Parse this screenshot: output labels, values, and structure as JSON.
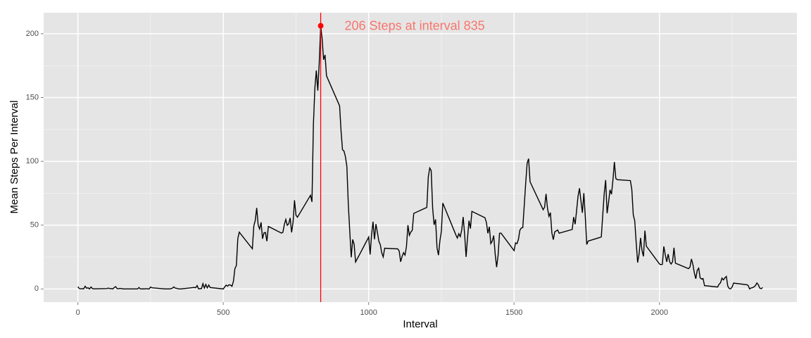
{
  "chart_data": {
    "type": "line",
    "x_label": "Interval",
    "y_label": "Mean Steps Per Interval",
    "xlim": [
      -117.75,
      2472.75
    ],
    "ylim": [
      -10.3,
      216.5
    ],
    "xticks": [
      0,
      500,
      1000,
      1500,
      2000
    ],
    "yticks": [
      0,
      50,
      100,
      150,
      200
    ],
    "x_minor_ticks": [
      250,
      750,
      1250,
      1750,
      2250
    ],
    "y_minor_ticks": [
      25,
      75,
      125,
      175
    ],
    "grid": true,
    "color": "#000000",
    "x": [
      0,
      5,
      10,
      15,
      20,
      25,
      30,
      35,
      40,
      45,
      50,
      55,
      100,
      105,
      110,
      115,
      120,
      125,
      130,
      135,
      140,
      145,
      150,
      155,
      200,
      205,
      210,
      215,
      220,
      225,
      230,
      235,
      240,
      245,
      250,
      255,
      300,
      305,
      310,
      315,
      320,
      325,
      330,
      335,
      340,
      345,
      350,
      355,
      400,
      405,
      410,
      415,
      420,
      425,
      430,
      435,
      440,
      445,
      450,
      455,
      500,
      505,
      510,
      515,
      520,
      525,
      530,
      535,
      540,
      545,
      550,
      555,
      600,
      605,
      610,
      615,
      620,
      625,
      630,
      635,
      640,
      645,
      650,
      655,
      700,
      705,
      710,
      715,
      720,
      725,
      730,
      735,
      740,
      745,
      750,
      755,
      800,
      805,
      810,
      815,
      820,
      825,
      830,
      835,
      840,
      845,
      850,
      855,
      900,
      905,
      910,
      915,
      920,
      925,
      930,
      935,
      940,
      945,
      950,
      955,
      1000,
      1005,
      1010,
      1015,
      1020,
      1025,
      1030,
      1035,
      1040,
      1045,
      1050,
      1055,
      1100,
      1105,
      1110,
      1115,
      1120,
      1125,
      1130,
      1135,
      1140,
      1145,
      1150,
      1155,
      1200,
      1205,
      1210,
      1215,
      1220,
      1225,
      1230,
      1235,
      1240,
      1245,
      1250,
      1255,
      1300,
      1305,
      1310,
      1315,
      1320,
      1325,
      1330,
      1335,
      1340,
      1345,
      1350,
      1355,
      1400,
      1405,
      1410,
      1415,
      1420,
      1425,
      1430,
      1435,
      1440,
      1445,
      1450,
      1455,
      1500,
      1505,
      1510,
      1515,
      1520,
      1525,
      1530,
      1535,
      1540,
      1545,
      1550,
      1555,
      1600,
      1605,
      1610,
      1615,
      1620,
      1625,
      1630,
      1635,
      1640,
      1645,
      1650,
      1655,
      1700,
      1705,
      1710,
      1715,
      1720,
      1725,
      1730,
      1735,
      1740,
      1745,
      1750,
      1755,
      1800,
      1805,
      1810,
      1815,
      1820,
      1825,
      1830,
      1835,
      1840,
      1845,
      1850,
      1855,
      1900,
      1905,
      1910,
      1915,
      1920,
      1925,
      1930,
      1935,
      1940,
      1945,
      1950,
      1955,
      2000,
      2005,
      2010,
      2015,
      2020,
      2025,
      2030,
      2035,
      2040,
      2045,
      2050,
      2055,
      2100,
      2105,
      2110,
      2115,
      2120,
      2125,
      2130,
      2135,
      2140,
      2145,
      2150,
      2155,
      2200,
      2205,
      2210,
      2215,
      2220,
      2225,
      2230,
      2235,
      2240,
      2245,
      2250,
      2255,
      2300,
      2305,
      2310,
      2315,
      2320,
      2325,
      2330,
      2335,
      2340,
      2345,
      2350,
      2355
    ],
    "values": [
      1.7,
      0.3,
      0.1,
      0.2,
      0.1,
      2.1,
      0.5,
      0.9,
      0,
      1.5,
      0.3,
      0.1,
      0.3,
      0.7,
      0.2,
      0.3,
      0,
      1.1,
      1.8,
      0.2,
      0.2,
      0.4,
      0.3,
      0,
      0,
      0,
      1.1,
      0,
      0,
      0.1,
      0,
      0.2,
      0,
      0,
      1.5,
      0.9,
      0,
      0,
      0,
      0,
      0.2,
      0.6,
      1.6,
      0.6,
      0.5,
      0.1,
      0,
      0,
      1.2,
      0.9,
      2.6,
      0,
      0.3,
      0.2,
      4.1,
      0.7,
      3.5,
      0.8,
      3.1,
      1.1,
      0,
      1.6,
      3,
      2.2,
      3.3,
      3,
      2.1,
      6.1,
      16,
      18.3,
      39.5,
      44.5,
      31.5,
      49.3,
      53.8,
      63.5,
      50,
      47,
      52.2,
      39.3,
      44,
      44.2,
      37.4,
      49,
      43.8,
      44.4,
      50.5,
      54.5,
      49.9,
      51,
      55.7,
      44.3,
      52.3,
      69.5,
      57.8,
      56.2,
      73.4,
      68.2,
      129.4,
      157.5,
      171.2,
      155.4,
      177.3,
      206.2,
      195.9,
      179.6,
      183.4,
      167,
      143.5,
      124,
      109.1,
      108.1,
      103.7,
      96,
      66.2,
      45.2,
      24.8,
      38.8,
      35,
      21.1,
      40.6,
      27,
      42.4,
      52.7,
      38.9,
      50.8,
      44.3,
      37.4,
      34.7,
      28.3,
      25.1,
      31.9,
      31.4,
      29.7,
      21.3,
      25.5,
      28.4,
      26.5,
      33.4,
      50,
      42,
      44.6,
      46,
      59.2,
      63.9,
      87.7,
      94.8,
      92.8,
      63.4,
      50.2,
      54.5,
      32.4,
      26.5,
      37.7,
      45.1,
      67.3,
      42.3,
      39.9,
      43.3,
      41,
      46.2,
      56.4,
      42.8,
      25.1,
      40,
      53.5,
      47.3,
      60.8,
      55.8,
      52,
      43.6,
      48.7,
      35.5,
      37.5,
      41.8,
      27.5,
      17.1,
      26.1,
      43.6,
      43.8,
      30,
      36.1,
      35.5,
      38.8,
      46,
      47.8,
      48.1,
      65.3,
      82.9,
      98.7,
      102.1,
      84,
      62.1,
      64.1,
      74.5,
      63.2,
      56.9,
      59.8,
      43.9,
      38.6,
      44.7,
      45.5,
      46.2,
      43.7,
      46.6,
      56.3,
      50.7,
      61.2,
      72.7,
      78.9,
      68.9,
      59.7,
      75.1,
      56.5,
      34.8,
      37.5,
      40.7,
      58,
      74.7,
      85.3,
      59.3,
      67.8,
      77.7,
      74.2,
      85.3,
      99.5,
      86.6,
      85.6,
      84.9,
      77.8,
      58,
      53.4,
      36.3,
      20.7,
      27.4,
      40,
      30.2,
      25.5,
      45.7,
      33.5,
      19.6,
      19,
      19.3,
      33.3,
      26.8,
      21.2,
      27.3,
      21.3,
      19.5,
      21.3,
      32.3,
      20.2,
      15.9,
      17.2,
      23.5,
      19.2,
      12.5,
      8,
      14.7,
      16.3,
      8.7,
      7.8,
      8.1,
      2.6,
      1.5,
      3.7,
      4.8,
      8.5,
      7.1,
      8.7,
      9.8,
      2.2,
      0.3,
      0.1,
      1.6,
      4.6,
      3.3,
      2.8,
      0,
      0.8,
      1,
      1.6,
      2.6,
      4.7,
      3.3,
      0.6,
      0.2,
      1.1
    ],
    "annotation": {
      "text": "206 Steps at interval 835",
      "x": 835,
      "y": 206.2,
      "color": "#ff0000",
      "text_color": "#f8766d"
    }
  }
}
